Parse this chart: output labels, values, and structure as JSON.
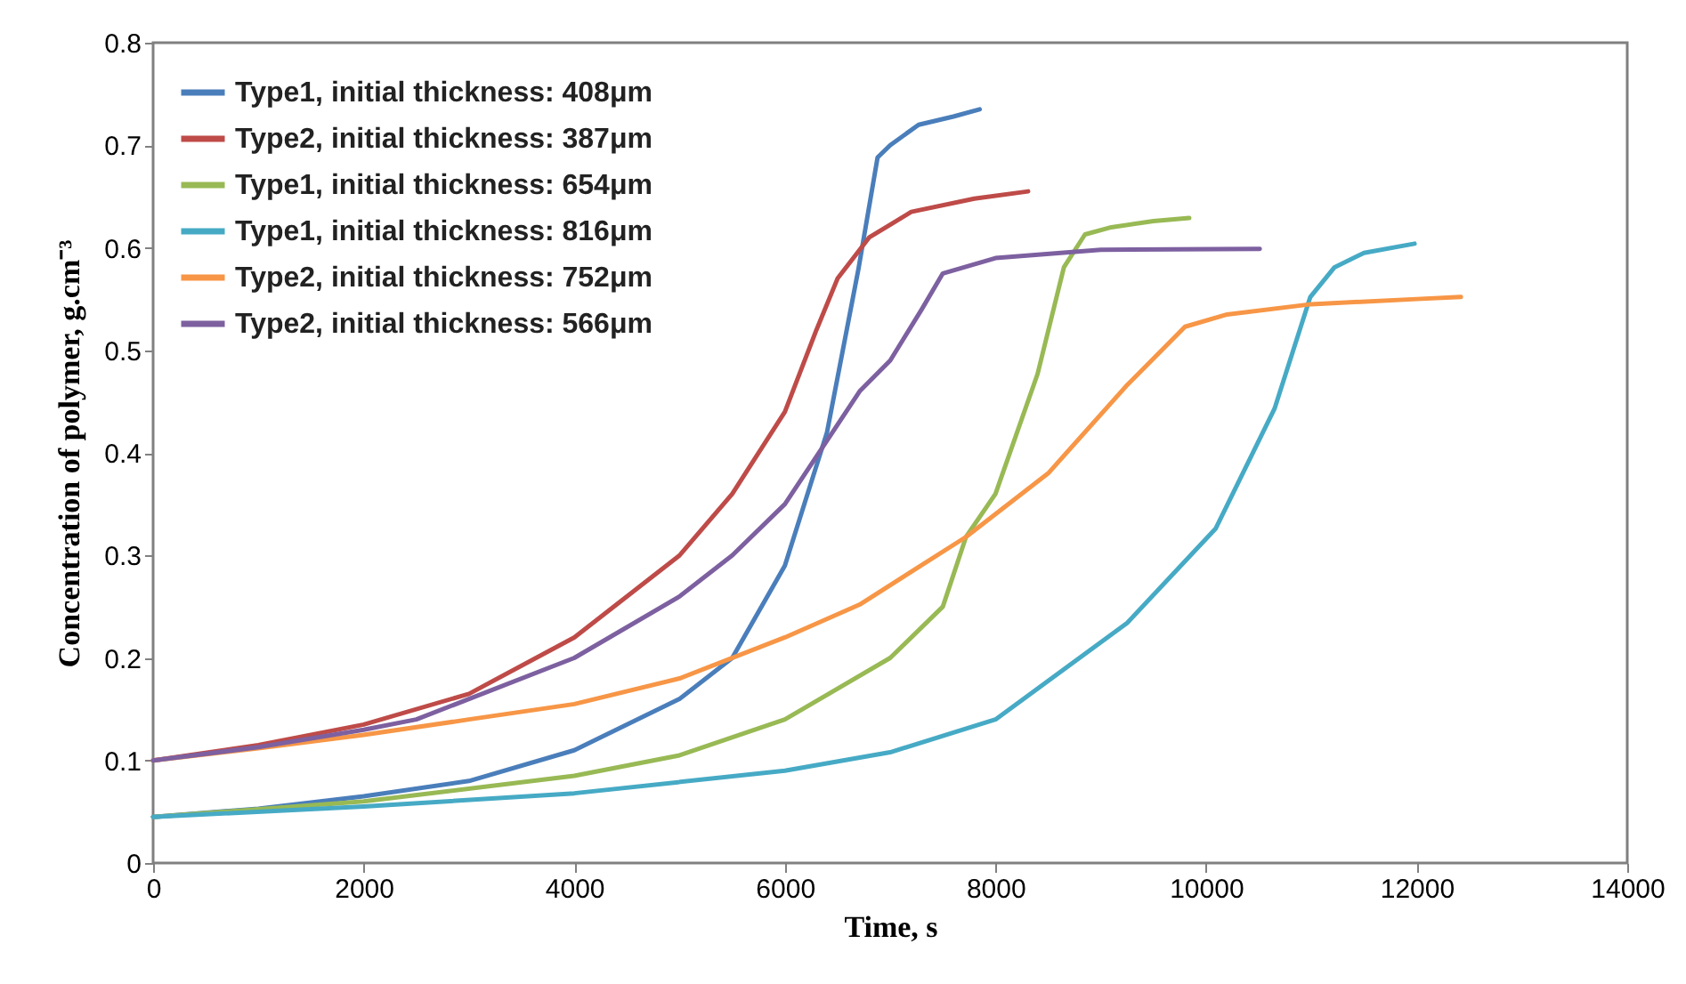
{
  "chart_data": {
    "type": "line",
    "xlabel": "Time, s",
    "ylabel": "Concentration of polymer, g.cm⁻³",
    "xlim": [
      0,
      14000
    ],
    "xticks": [
      0,
      2000,
      4000,
      6000,
      8000,
      10000,
      12000,
      14000
    ],
    "ylim": [
      0,
      0.8
    ],
    "yticks": [
      0,
      0.1,
      0.2,
      0.3,
      0.4,
      0.5,
      0.6,
      0.7,
      0.8
    ],
    "grid": false,
    "legend": "top left",
    "marker": "none",
    "line_style": "solid",
    "series": [
      {
        "name": "Type1, initial thickness: 408μm",
        "color": "#4a7ebb",
        "x": [
          0,
          1000,
          2000,
          3000,
          4000,
          5000,
          5500,
          6000,
          6400,
          6700,
          6880,
          7000,
          7270,
          7600,
          7850
        ],
        "values": [
          0.045,
          0.053,
          0.065,
          0.08,
          0.11,
          0.16,
          0.2,
          0.29,
          0.42,
          0.58,
          0.688,
          0.7,
          0.72,
          0.728,
          0.735
        ]
      },
      {
        "name": "Type2, initial thickness: 387μm",
        "color": "#be4b48",
        "x": [
          0,
          1000,
          2000,
          3000,
          4000,
          5000,
          5500,
          6000,
          6300,
          6500,
          6800,
          7200,
          7800,
          8310
        ],
        "values": [
          0.1,
          0.115,
          0.135,
          0.165,
          0.22,
          0.3,
          0.36,
          0.44,
          0.52,
          0.57,
          0.61,
          0.635,
          0.648,
          0.655
        ]
      },
      {
        "name": "Type1, initial thickness: 654μm",
        "color": "#98b954",
        "x": [
          0,
          2000,
          4000,
          5000,
          6000,
          7000,
          7500,
          7720,
          8000,
          8400,
          8650,
          8850,
          9100,
          9500,
          9840
        ],
        "values": [
          0.045,
          0.06,
          0.085,
          0.105,
          0.14,
          0.2,
          0.25,
          0.318,
          0.36,
          0.477,
          0.581,
          0.613,
          0.62,
          0.626,
          0.629
        ]
      },
      {
        "name": "Type1, initial thickness: 816μm",
        "color": "#46aac5",
        "x": [
          0,
          2000,
          4000,
          6000,
          7000,
          8000,
          9250,
          10090,
          10650,
          10990,
          11220,
          11500,
          11980
        ],
        "values": [
          0.045,
          0.055,
          0.068,
          0.09,
          0.108,
          0.14,
          0.234,
          0.326,
          0.443,
          0.552,
          0.581,
          0.595,
          0.604
        ]
      },
      {
        "name": "Type2, initial thickness: 752μm",
        "color": "#f79646",
        "x": [
          0,
          1000,
          2000,
          3000,
          4000,
          5000,
          6000,
          6710,
          7720,
          8500,
          9240,
          9800,
          10200,
          11000,
          12000,
          12420
        ],
        "values": [
          0.1,
          0.112,
          0.125,
          0.14,
          0.155,
          0.18,
          0.22,
          0.252,
          0.318,
          0.38,
          0.465,
          0.523,
          0.535,
          0.545,
          0.55,
          0.552
        ]
      },
      {
        "name": "Type2, initial thickness: 566μm",
        "color": "#7d60a0",
        "x": [
          0,
          1000,
          2000,
          2500,
          3000,
          4000,
          5000,
          5500,
          6000,
          6710,
          7000,
          7300,
          7500,
          8000,
          9000,
          10510
        ],
        "values": [
          0.1,
          0.113,
          0.13,
          0.14,
          0.16,
          0.2,
          0.26,
          0.3,
          0.35,
          0.46,
          0.49,
          0.54,
          0.575,
          0.59,
          0.598,
          0.599
        ]
      }
    ]
  }
}
